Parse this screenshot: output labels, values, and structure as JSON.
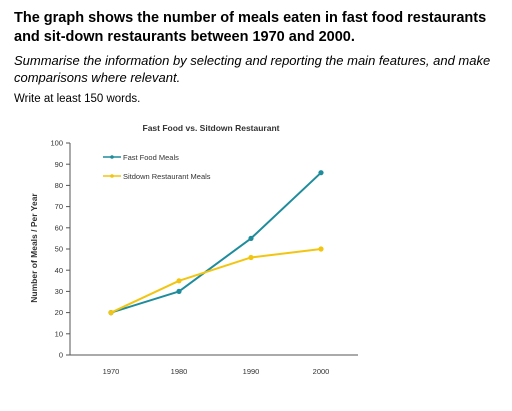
{
  "question": {
    "title": "The graph shows the number of meals eaten in fast food restaurants and sit-down restaurants between 1970 and 2000.",
    "instruction": "Summarise the information by selecting and reporting the main features, and make comparisons where relevant.",
    "word_count": "Write at least 150 words."
  },
  "colors": {
    "fast_food": "#1f8c9c",
    "sitdown": "#f2c511",
    "axis": "#555555"
  },
  "chart_data": {
    "type": "line",
    "title": "Fast Food vs. Sitdown Restaurant",
    "xlabel": "",
    "ylabel": "Number of Meals / Per Year",
    "categories": [
      "1970",
      "1980",
      "1990",
      "2000"
    ],
    "ylim": [
      0,
      100
    ],
    "yticks": [
      0,
      10,
      20,
      30,
      40,
      50,
      60,
      70,
      80,
      90,
      100
    ],
    "grid": false,
    "legend_position": "top-left",
    "series": [
      {
        "name": "Fast Food Meals",
        "values": [
          20,
          30,
          55,
          86
        ]
      },
      {
        "name": "Sitdown Restaurant Meals",
        "values": [
          20,
          35,
          46,
          50
        ]
      }
    ]
  }
}
